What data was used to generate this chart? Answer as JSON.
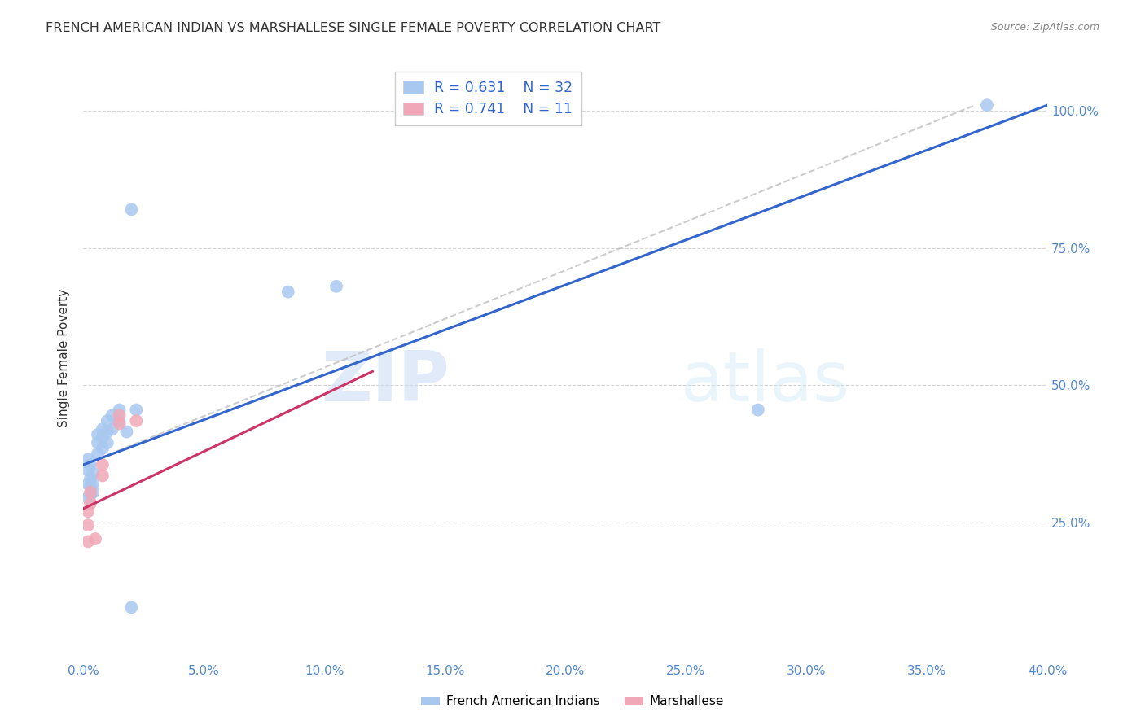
{
  "title": "FRENCH AMERICAN INDIAN VS MARSHALLESE SINGLE FEMALE POVERTY CORRELATION CHART",
  "source": "Source: ZipAtlas.com",
  "ylabel": "Single Female Poverty",
  "xlim": [
    0.0,
    0.4
  ],
  "ylim": [
    0.0,
    1.1
  ],
  "xticks": [
    0.0,
    0.05,
    0.1,
    0.15,
    0.2,
    0.25,
    0.3,
    0.35,
    0.4
  ],
  "yticks": [
    0.25,
    0.5,
    0.75,
    1.0
  ],
  "watermark": "ZIPatlas",
  "R_blue": 0.631,
  "N_blue": 32,
  "R_pink": 0.741,
  "N_pink": 11,
  "blue_color": "#a8c8f0",
  "pink_color": "#f0a8b8",
  "blue_line_color": "#3366cc",
  "pink_line_color": "#cc3366",
  "title_color": "#333333",
  "axis_label_color": "#333333",
  "tick_label_color": "#5588cc",
  "grid_color": "#cccccc",
  "blue_line": [
    [
      0.0,
      0.355
    ],
    [
      0.4,
      1.01
    ]
  ],
  "pink_line": [
    [
      0.0,
      0.275
    ],
    [
      0.12,
      0.525
    ]
  ],
  "ref_line": [
    [
      0.0,
      0.355
    ],
    [
      0.37,
      1.01
    ]
  ],
  "blue_points": [
    [
      0.002,
      0.295
    ],
    [
      0.002,
      0.32
    ],
    [
      0.002,
      0.345
    ],
    [
      0.002,
      0.365
    ],
    [
      0.003,
      0.3
    ],
    [
      0.003,
      0.315
    ],
    [
      0.003,
      0.33
    ],
    [
      0.003,
      0.355
    ],
    [
      0.004,
      0.305
    ],
    [
      0.004,
      0.32
    ],
    [
      0.004,
      0.34
    ],
    [
      0.006,
      0.375
    ],
    [
      0.006,
      0.395
    ],
    [
      0.006,
      0.41
    ],
    [
      0.008,
      0.385
    ],
    [
      0.008,
      0.405
    ],
    [
      0.008,
      0.42
    ],
    [
      0.01,
      0.395
    ],
    [
      0.01,
      0.415
    ],
    [
      0.01,
      0.435
    ],
    [
      0.012,
      0.42
    ],
    [
      0.012,
      0.445
    ],
    [
      0.015,
      0.435
    ],
    [
      0.015,
      0.455
    ],
    [
      0.018,
      0.415
    ],
    [
      0.022,
      0.455
    ],
    [
      0.085,
      0.67
    ],
    [
      0.105,
      0.68
    ],
    [
      0.02,
      0.82
    ],
    [
      0.02,
      0.095
    ],
    [
      0.28,
      0.455
    ],
    [
      0.375,
      1.01
    ]
  ],
  "pink_points": [
    [
      0.002,
      0.215
    ],
    [
      0.002,
      0.245
    ],
    [
      0.002,
      0.27
    ],
    [
      0.003,
      0.285
    ],
    [
      0.003,
      0.305
    ],
    [
      0.005,
      0.22
    ],
    [
      0.008,
      0.335
    ],
    [
      0.008,
      0.355
    ],
    [
      0.015,
      0.43
    ],
    [
      0.015,
      0.445
    ],
    [
      0.022,
      0.435
    ]
  ]
}
